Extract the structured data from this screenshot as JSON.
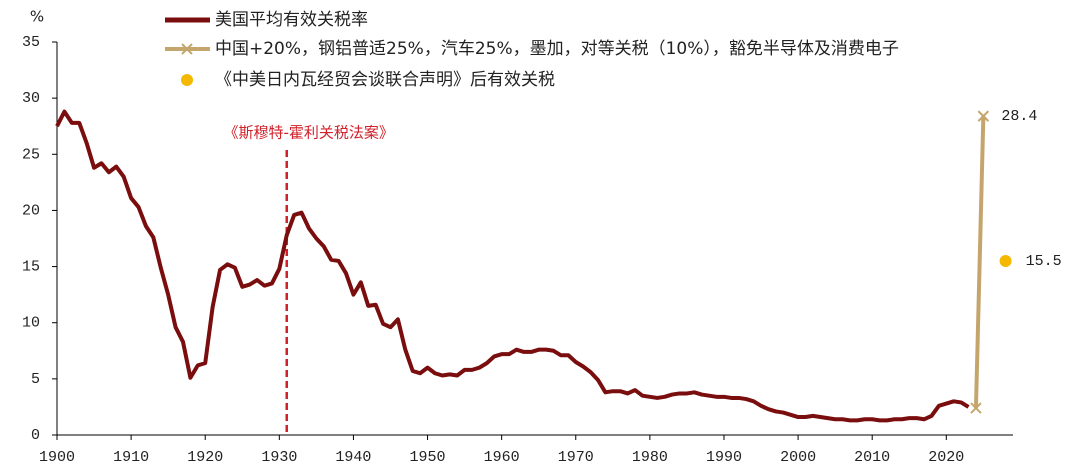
{
  "chart_data": {
    "type": "line",
    "y_label": "%",
    "xlim": [
      1900,
      2029
    ],
    "xticks": [
      1900,
      1910,
      1920,
      1930,
      1940,
      1950,
      1960,
      1970,
      1980,
      1990,
      2000,
      2010,
      2020
    ],
    "ylim": [
      0,
      35
    ],
    "yticks": [
      0,
      5,
      10,
      15,
      20,
      25,
      30,
      35
    ],
    "annotation": {
      "text": "《斯穆特-霍利关税法案》",
      "x": 1931,
      "color": "#d0202a"
    },
    "series": [
      {
        "name": "美国平均有效关税率",
        "color": "#7a0d0d",
        "kind": "line",
        "x": [
          1900,
          1901,
          1902,
          1903,
          1904,
          1905,
          1906,
          1907,
          1908,
          1909,
          1910,
          1911,
          1912,
          1913,
          1914,
          1915,
          1916,
          1917,
          1918,
          1919,
          1920,
          1921,
          1922,
          1923,
          1924,
          1925,
          1926,
          1927,
          1928,
          1929,
          1930,
          1931,
          1932,
          1933,
          1934,
          1935,
          1936,
          1937,
          1938,
          1939,
          1940,
          1941,
          1942,
          1943,
          1944,
          1945,
          1946,
          1947,
          1948,
          1949,
          1950,
          1951,
          1952,
          1953,
          1954,
          1955,
          1956,
          1957,
          1958,
          1959,
          1960,
          1961,
          1962,
          1963,
          1964,
          1965,
          1966,
          1967,
          1968,
          1969,
          1970,
          1971,
          1972,
          1973,
          1974,
          1975,
          1976,
          1977,
          1978,
          1979,
          1980,
          1981,
          1982,
          1983,
          1984,
          1985,
          1986,
          1987,
          1988,
          1989,
          1990,
          1991,
          1992,
          1993,
          1994,
          1995,
          1996,
          1997,
          1998,
          1999,
          2000,
          2001,
          2002,
          2003,
          2004,
          2005,
          2006,
          2007,
          2008,
          2009,
          2010,
          2011,
          2012,
          2013,
          2014,
          2015,
          2016,
          2017,
          2018,
          2019,
          2020,
          2021,
          2022,
          2023
        ],
        "values": [
          27.5,
          28.8,
          27.8,
          27.8,
          26.0,
          23.8,
          24.2,
          23.4,
          23.9,
          23.0,
          21.1,
          20.3,
          18.6,
          17.6,
          14.9,
          12.5,
          9.6,
          8.3,
          5.1,
          6.2,
          6.4,
          11.4,
          14.7,
          15.2,
          14.9,
          13.2,
          13.4,
          13.8,
          13.3,
          13.5,
          14.8,
          17.8,
          19.6,
          19.8,
          18.4,
          17.5,
          16.8,
          15.6,
          15.5,
          14.4,
          12.5,
          13.6,
          11.5,
          11.6,
          9.9,
          9.6,
          10.3,
          7.6,
          5.7,
          5.5,
          6.0,
          5.5,
          5.3,
          5.4,
          5.3,
          5.8,
          5.8,
          6.0,
          6.4,
          7.0,
          7.2,
          7.2,
          7.6,
          7.4,
          7.4,
          7.6,
          7.6,
          7.5,
          7.1,
          7.1,
          6.5,
          6.1,
          5.6,
          4.9,
          3.8,
          3.9,
          3.9,
          3.7,
          4.0,
          3.5,
          3.4,
          3.3,
          3.4,
          3.6,
          3.7,
          3.7,
          3.8,
          3.6,
          3.5,
          3.4,
          3.4,
          3.3,
          3.3,
          3.2,
          3.0,
          2.6,
          2.3,
          2.1,
          2.0,
          1.8,
          1.6,
          1.6,
          1.7,
          1.6,
          1.5,
          1.4,
          1.4,
          1.3,
          1.3,
          1.4,
          1.4,
          1.3,
          1.3,
          1.4,
          1.4,
          1.5,
          1.5,
          1.4,
          1.7,
          2.6,
          2.8,
          3.0,
          2.9,
          2.5
        ]
      },
      {
        "name": "中国+20%，钢铝普适25%，汽车25%，墨加，对等关税（10%），豁免半导体及消费电子",
        "color": "#c4a66c",
        "kind": "line-x",
        "x": [
          2024,
          2025
        ],
        "values": [
          2.4,
          28.4
        ]
      },
      {
        "name": "《中美日内瓦经贸会谈联合声明》后有效关税",
        "color": "#f5b800",
        "kind": "dot",
        "x": [
          2028
        ],
        "values": [
          15.5
        ]
      }
    ]
  }
}
